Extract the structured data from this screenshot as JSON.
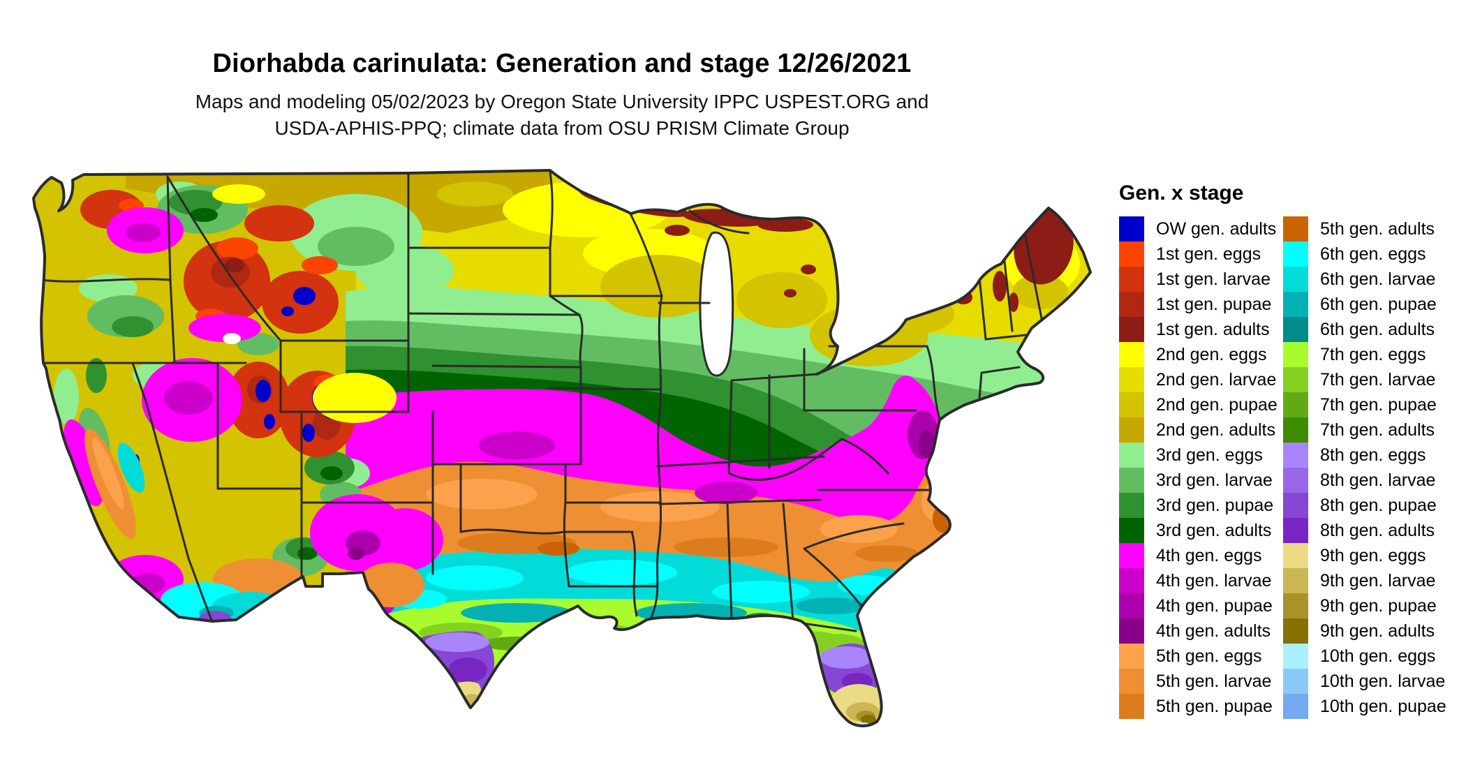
{
  "header": {
    "title": "Diorhabda carinulata: Generation and stage 12/26/2021",
    "subtitle1": "Maps and modeling 05/02/2023 by Oregon State University IPPC USPEST.ORG and",
    "subtitle2": "USDA-APHIS-PPQ; climate data from OSU PRISM Climate Group"
  },
  "map": {
    "kind": "choropleth map of the contiguous United States colored by insect generation and life stage"
  },
  "palette": {
    "ow_adults": "#0000CD",
    "g1_eggs": "#FB4402",
    "g1_larvae": "#D3330E",
    "g1_pupae": "#AF2912",
    "g1_adults": "#8C1C16",
    "g2_eggs": "#FFFF00",
    "g2_larvae": "#E6DC00",
    "g2_pupae": "#D3C300",
    "g2_adults": "#C6A800",
    "g3_eggs": "#90EE90",
    "g3_larvae": "#62BD62",
    "g3_pupae": "#2F912F",
    "g3_adults": "#006400",
    "g4_eggs": "#FF00FF",
    "g4_larvae": "#CB00CB",
    "g4_pupae": "#AB00AB",
    "g4_adults": "#8B008B",
    "g5_eggs": "#FCA24C",
    "g5_larvae": "#EE8F33",
    "g5_pupae": "#DD7C1C",
    "g5_adults": "#CB6302",
    "g6_eggs": "#00FFFF",
    "g6_larvae": "#03DBD9",
    "g6_pupae": "#01B1B4",
    "g6_adults": "#008B8B",
    "g7_eggs": "#A8FC2E",
    "g7_larvae": "#84D121",
    "g7_pupae": "#60AB13",
    "g7_adults": "#3D8C02",
    "g8_eggs": "#A985FC",
    "g8_larvae": "#9867E8",
    "g8_pupae": "#8747D4",
    "g8_adults": "#7726C2",
    "g9_eggs": "#ECDB85",
    "g9_larvae": "#CBB656",
    "g9_pupae": "#AB9129",
    "g9_adults": "#877000",
    "g10_eggs": "#AAF0FF",
    "g10_larvae": "#8AC9F6",
    "g10_pupae": "#72A9EF"
  },
  "legend": {
    "title": "Gen. x stage",
    "left": [
      {
        "label": "OW gen. adults",
        "key": "ow_adults"
      },
      {
        "label": "1st gen. eggs",
        "key": "g1_eggs"
      },
      {
        "label": "1st gen. larvae",
        "key": "g1_larvae"
      },
      {
        "label": "1st gen. pupae",
        "key": "g1_pupae"
      },
      {
        "label": "1st gen. adults",
        "key": "g1_adults"
      },
      {
        "label": "2nd gen. eggs",
        "key": "g2_eggs"
      },
      {
        "label": "2nd gen. larvae",
        "key": "g2_larvae"
      },
      {
        "label": "2nd gen. pupae",
        "key": "g2_pupae"
      },
      {
        "label": "2nd gen. adults",
        "key": "g2_adults"
      },
      {
        "label": "3rd gen. eggs",
        "key": "g3_eggs"
      },
      {
        "label": "3rd gen. larvae",
        "key": "g3_larvae"
      },
      {
        "label": "3rd gen. pupae",
        "key": "g3_pupae"
      },
      {
        "label": "3rd gen. adults",
        "key": "g3_adults"
      },
      {
        "label": "4th gen. eggs",
        "key": "g4_eggs"
      },
      {
        "label": "4th gen. larvae",
        "key": "g4_larvae"
      },
      {
        "label": "4th gen. pupae",
        "key": "g4_pupae"
      },
      {
        "label": "4th gen. adults",
        "key": "g4_adults"
      },
      {
        "label": "5th gen. eggs",
        "key": "g5_eggs"
      },
      {
        "label": "5th gen. larvae",
        "key": "g5_larvae"
      },
      {
        "label": "5th gen. pupae",
        "key": "g5_pupae"
      }
    ],
    "right": [
      {
        "label": "5th gen. adults",
        "key": "g5_adults"
      },
      {
        "label": "6th gen. eggs",
        "key": "g6_eggs"
      },
      {
        "label": "6th gen. larvae",
        "key": "g6_larvae"
      },
      {
        "label": "6th gen. pupae",
        "key": "g6_pupae"
      },
      {
        "label": "6th gen. adults",
        "key": "g6_adults"
      },
      {
        "label": "7th gen. eggs",
        "key": "g7_eggs"
      },
      {
        "label": "7th gen. larvae",
        "key": "g7_larvae"
      },
      {
        "label": "7th gen. pupae",
        "key": "g7_pupae"
      },
      {
        "label": "7th gen. adults",
        "key": "g7_adults"
      },
      {
        "label": "8th gen. eggs",
        "key": "g8_eggs"
      },
      {
        "label": "8th gen. larvae",
        "key": "g8_larvae"
      },
      {
        "label": "8th gen. pupae",
        "key": "g8_pupae"
      },
      {
        "label": "8th gen. adults",
        "key": "g8_adults"
      },
      {
        "label": "9th gen. eggs",
        "key": "g9_eggs"
      },
      {
        "label": "9th gen. larvae",
        "key": "g9_larvae"
      },
      {
        "label": "9th gen. pupae",
        "key": "g9_pupae"
      },
      {
        "label": "9th gen. adults",
        "key": "g9_adults"
      },
      {
        "label": "10th gen. eggs",
        "key": "g10_eggs"
      },
      {
        "label": "10th gen. larvae",
        "key": "g10_larvae"
      },
      {
        "label": "10th gen. pupae",
        "key": "g10_pupae"
      }
    ]
  }
}
